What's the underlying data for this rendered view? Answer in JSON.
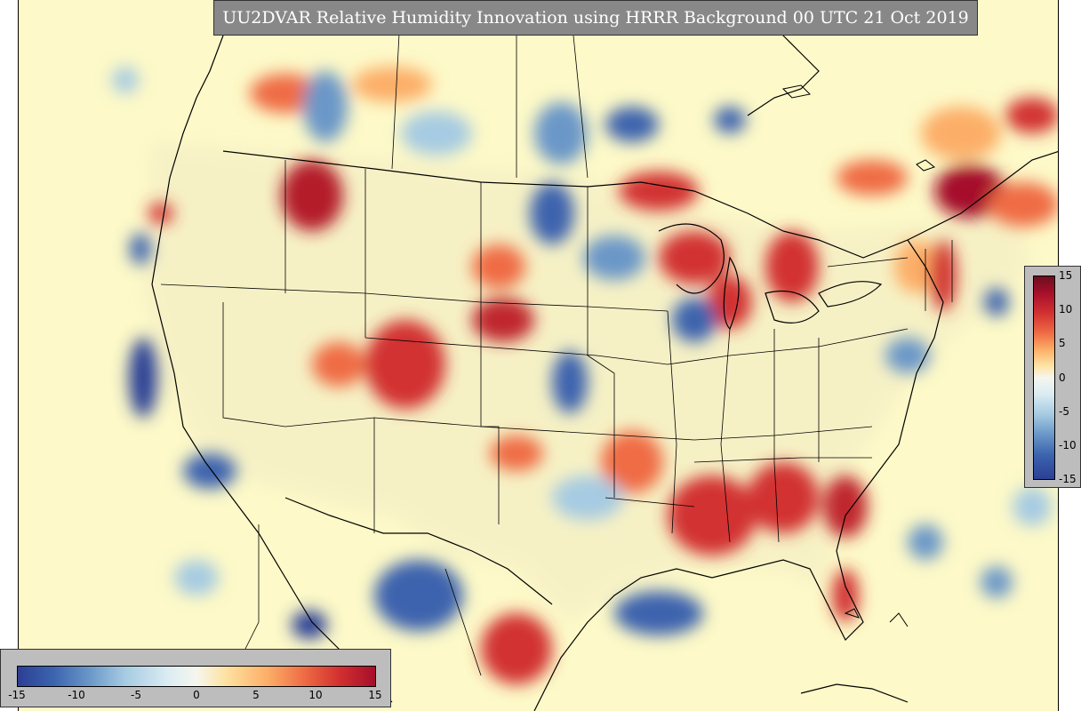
{
  "title": "UU2DVAR Relative Humidity Innovation using HRRR Background 00 UTC 21 Oct 2019",
  "colorbar_horizontal": {
    "ticks": [
      "-15",
      "-10",
      "-5",
      "0",
      "5",
      "10",
      "15"
    ]
  },
  "colorbar_vertical": {
    "ticks": [
      "15",
      "10",
      "5",
      "0",
      "-5",
      "-10",
      "-15"
    ]
  },
  "colors": {
    "background": "#fdf9c8",
    "negative_max": "#2c3f95",
    "neutral": "#f6f6ee",
    "positive_max": "#a50f2b",
    "panel_gray": "#888888"
  },
  "map": {
    "region": "Continental United States with parts of Canada and Mexico",
    "field": "relative humidity innovation",
    "range": [
      -15,
      15
    ]
  }
}
